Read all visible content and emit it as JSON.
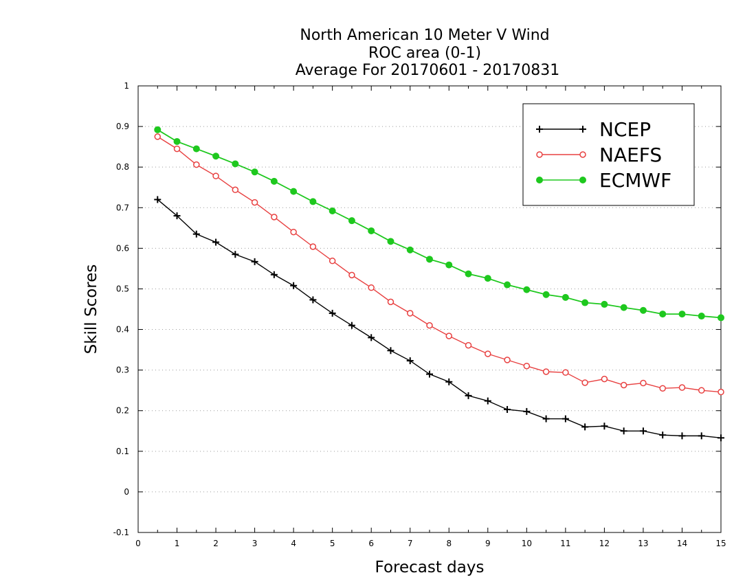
{
  "chart_data": {
    "type": "line",
    "title": [
      "North American 10 Meter V Wind",
      "ROC area (0-1)",
      "Average For 20170601 - 20170831"
    ],
    "xlabel": "Forecast days",
    "ylabel": "Skill Scores",
    "xlim": [
      0,
      15
    ],
    "ylim": [
      -0.1,
      1
    ],
    "xticks": [
      0,
      1,
      2,
      3,
      4,
      5,
      6,
      7,
      8,
      9,
      10,
      11,
      12,
      13,
      14,
      15
    ],
    "xtick_labels": [
      "0",
      "1",
      "2",
      "3",
      "4",
      "5",
      "6",
      "7",
      "8",
      "9",
      "10",
      "11",
      "12",
      "13",
      "14",
      "15"
    ],
    "yticks": [
      -0.1,
      0,
      0.1,
      0.2,
      0.3,
      0.4,
      0.5,
      0.6,
      0.7,
      0.8,
      0.9,
      1
    ],
    "ytick_labels": [
      "-0.1",
      "0",
      "0.1",
      "0.2",
      "0.3",
      "0.4",
      "0.5",
      "0.6",
      "0.7",
      "0.8",
      "0.9",
      "1"
    ],
    "grid": "horizontal-dotted",
    "legend_position": "top-right",
    "x": [
      0.5,
      1,
      1.5,
      2,
      2.5,
      3,
      3.5,
      4,
      4.5,
      5,
      5.5,
      6,
      6.5,
      7,
      7.5,
      8,
      8.5,
      9,
      9.5,
      10,
      10.5,
      11,
      11.5,
      12,
      12.5,
      13,
      13.5,
      14,
      14.5,
      15
    ],
    "series": [
      {
        "name": "NCEP",
        "color": "#000000",
        "marker": "plus",
        "values": [
          0.72,
          0.68,
          0.635,
          0.615,
          0.585,
          0.567,
          0.535,
          0.508,
          0.473,
          0.44,
          0.41,
          0.38,
          0.348,
          0.323,
          0.29,
          0.271,
          0.237,
          0.224,
          0.203,
          0.198,
          0.18,
          0.18,
          0.16,
          0.162,
          0.15,
          0.15,
          0.14,
          0.138,
          0.138,
          0.133
        ]
      },
      {
        "name": "NAEFS",
        "color": "#e84040",
        "marker": "open-circle",
        "values": [
          0.875,
          0.845,
          0.806,
          0.778,
          0.744,
          0.713,
          0.677,
          0.64,
          0.604,
          0.569,
          0.534,
          0.503,
          0.468,
          0.44,
          0.41,
          0.384,
          0.361,
          0.34,
          0.325,
          0.31,
          0.296,
          0.294,
          0.269,
          0.278,
          0.263,
          0.268,
          0.255,
          0.257,
          0.25,
          0.246
        ]
      },
      {
        "name": "ECMWF",
        "color": "#1ec81e",
        "marker": "filled-circle",
        "values": [
          0.892,
          0.863,
          0.845,
          0.827,
          0.808,
          0.788,
          0.765,
          0.74,
          0.715,
          0.692,
          0.668,
          0.643,
          0.617,
          0.596,
          0.573,
          0.559,
          0.537,
          0.526,
          0.51,
          0.498,
          0.486,
          0.479,
          0.466,
          0.462,
          0.454,
          0.447,
          0.438,
          0.438,
          0.433,
          0.429
        ]
      }
    ]
  }
}
